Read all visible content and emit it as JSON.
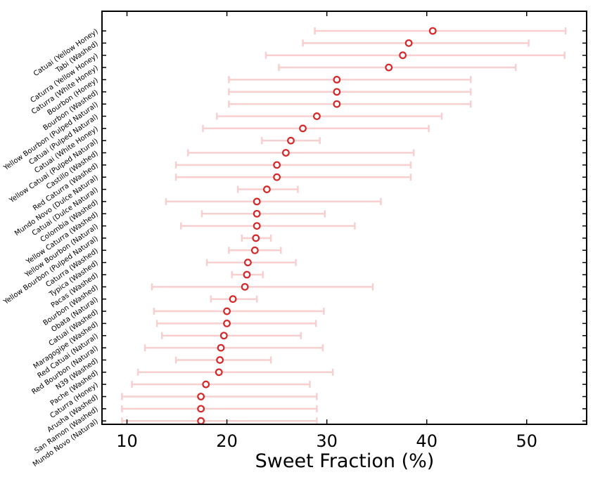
{
  "chart_data": {
    "type": "scatter",
    "title": "",
    "xlabel": "Sweet Fraction (%)",
    "ylabel": "",
    "xlim": [
      7.5,
      56
    ],
    "xticks": [
      10,
      20,
      30,
      40,
      50
    ],
    "xtick_labels": [
      "10",
      "20",
      "30",
      "40",
      "50"
    ],
    "series": [
      {
        "name": "Sweet fraction",
        "color": "#d62728",
        "error_color": "#f8cfcf",
        "categories": [
          "Catuai (Yellow Honey)",
          "Tabi (Washed)",
          "Caturra (Yellow Honey)",
          "Caturra (White Honey)",
          "Bourbon (Honey)",
          "Bourbon (Washed)",
          "Yellow Bourbon (Pulped Natural)",
          "Catuai (Pulped Natural)",
          "Catuai (White Honey)",
          "Yellow Catuai (Pulped Natural)",
          "Castillo (Washed)",
          "Red Caturra (Washed)",
          "Mundo Novo (Dulce Natural)",
          "Catuai (Dulce Natural)",
          "Colombia (Washed)",
          "Yellow Caturra (Washed)",
          "Yellow Bourbon (Natural)",
          "Yellow Bourbon (Pulped Natural)",
          "Caturra (Washed)",
          "Typica (Washed)",
          "Pacas (Washed)",
          "Bourbon (Washed)",
          "Obata (Natural)",
          "Catuai (Washed)",
          "Maragogipe (Washed)",
          "Red Catuai (Natural)",
          "Red Bourbon (Natural)",
          "N39 (Washed)",
          "Pache (Washed)",
          "Caturra (Honey)",
          "Arusha (Washed)",
          "San Ramon (Washed)",
          "Mundo Novo (Natural)"
        ],
        "values": [
          40.6,
          38.2,
          37.6,
          36.2,
          31.0,
          31.0,
          31.0,
          29.0,
          27.6,
          26.4,
          25.9,
          25.0,
          25.0,
          24.0,
          23.0,
          23.0,
          23.0,
          22.9,
          22.8,
          22.1,
          22.0,
          21.8,
          20.6,
          20.0,
          20.0,
          19.7,
          19.4,
          19.3,
          19.2,
          17.9,
          17.4,
          17.4,
          17.4
        ],
        "err_low": [
          28.8,
          27.6,
          23.9,
          25.2,
          20.2,
          20.2,
          20.2,
          19.0,
          17.6,
          23.5,
          16.1,
          14.9,
          14.9,
          21.1,
          13.9,
          17.5,
          15.4,
          21.5,
          20.2,
          18.0,
          20.5,
          12.5,
          18.4,
          12.7,
          13.0,
          13.5,
          11.8,
          14.9,
          11.1,
          10.5,
          9.5,
          9.5,
          9.5
        ],
        "err_high": [
          53.9,
          50.2,
          53.8,
          48.9,
          44.4,
          44.4,
          44.4,
          41.5,
          40.2,
          29.3,
          38.7,
          38.4,
          38.4,
          27.1,
          35.4,
          29.8,
          32.8,
          24.4,
          25.4,
          26.9,
          23.6,
          34.6,
          23.0,
          29.7,
          28.9,
          27.4,
          29.6,
          24.4,
          30.6,
          28.3,
          29.0,
          29.0,
          29.0
        ]
      }
    ]
  }
}
